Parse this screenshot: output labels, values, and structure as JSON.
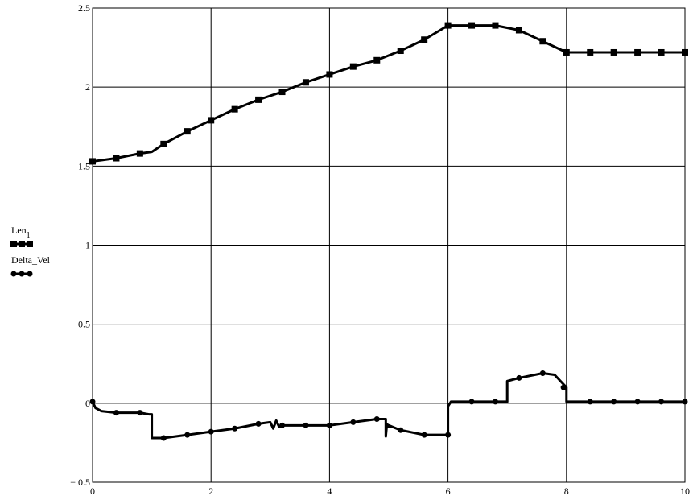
{
  "chart_data": {
    "type": "line",
    "title": "",
    "xlabel": "",
    "ylabel": "",
    "xlim": [
      0,
      10
    ],
    "ylim": [
      -0.5,
      2.5
    ],
    "grid": true,
    "x_ticks": [
      "0",
      "2",
      "4",
      "6",
      "8",
      "10"
    ],
    "y_ticks": [
      "− 0.5",
      "0",
      "0.5",
      "1",
      "1.5",
      "2",
      "2.5"
    ],
    "legend": {
      "placement": "left-middle"
    },
    "series": [
      {
        "name": "Len₁",
        "legend_main": "Len",
        "legend_sub": "1",
        "marker": "square",
        "color": "#000000",
        "x": [
          0,
          0.4,
          0.8,
          1.0,
          1.2,
          1.6,
          2.0,
          2.4,
          2.8,
          3.2,
          3.6,
          4.0,
          4.4,
          4.8,
          5.2,
          5.6,
          6.0,
          6.4,
          6.8,
          7.2,
          7.6,
          8.0,
          8.4,
          8.8,
          9.2,
          9.6,
          10.0
        ],
        "y": [
          1.53,
          1.55,
          1.58,
          1.59,
          1.64,
          1.72,
          1.79,
          1.86,
          1.92,
          1.97,
          2.03,
          2.08,
          2.13,
          2.17,
          2.23,
          2.3,
          2.39,
          2.39,
          2.39,
          2.36,
          2.29,
          2.22,
          2.22,
          2.22,
          2.22,
          2.22,
          2.22
        ],
        "marker_x": [
          0,
          0.4,
          0.8,
          1.2,
          1.6,
          2.0,
          2.4,
          2.8,
          3.2,
          3.6,
          4.0,
          4.4,
          4.8,
          5.2,
          5.6,
          6.0,
          6.4,
          6.8,
          7.2,
          7.6,
          8.0,
          8.4,
          8.8,
          9.2,
          9.6,
          10.0
        ]
      },
      {
        "name": "Delta_Vel",
        "legend_main": "Delta_Vel",
        "legend_sub": "",
        "marker": "circle",
        "color": "#000000",
        "x": [
          0,
          0.05,
          0.15,
          0.4,
          0.8,
          0.95,
          1.0,
          1.0,
          1.2,
          1.6,
          2.0,
          2.4,
          2.8,
          3.0,
          3.05,
          3.1,
          3.15,
          3.2,
          3.6,
          4.0,
          4.4,
          4.8,
          4.95,
          4.95,
          4.97,
          5.0,
          5.0,
          5.2,
          5.6,
          6.0,
          6.0,
          6.05,
          6.4,
          6.8,
          7.0,
          7.0,
          7.2,
          7.6,
          7.8,
          7.9,
          8.0,
          8.0,
          8.4,
          8.8,
          9.2,
          9.6,
          10.0
        ],
        "y": [
          0.01,
          -0.03,
          -0.05,
          -0.06,
          -0.06,
          -0.07,
          -0.07,
          -0.22,
          -0.22,
          -0.2,
          -0.18,
          -0.16,
          -0.13,
          -0.12,
          -0.16,
          -0.11,
          -0.15,
          -0.14,
          -0.14,
          -0.14,
          -0.12,
          -0.1,
          -0.1,
          -0.21,
          -0.13,
          -0.15,
          -0.14,
          -0.17,
          -0.2,
          -0.2,
          -0.02,
          0.01,
          0.01,
          0.01,
          0.01,
          0.14,
          0.16,
          0.19,
          0.18,
          0.14,
          0.1,
          0.01,
          0.01,
          0.01,
          0.01,
          0.01,
          0.01
        ],
        "marker_points": [
          [
            0,
            0.01
          ],
          [
            0.4,
            -0.06
          ],
          [
            0.8,
            -0.06
          ],
          [
            1.2,
            -0.22
          ],
          [
            1.6,
            -0.2
          ],
          [
            2.0,
            -0.18
          ],
          [
            2.4,
            -0.16
          ],
          [
            2.8,
            -0.13
          ],
          [
            3.2,
            -0.14
          ],
          [
            3.6,
            -0.14
          ],
          [
            4.0,
            -0.14
          ],
          [
            4.4,
            -0.12
          ],
          [
            4.8,
            -0.1
          ],
          [
            5.2,
            -0.17
          ],
          [
            5.6,
            -0.2
          ],
          [
            6.0,
            -0.2
          ],
          [
            6.4,
            0.01
          ],
          [
            6.8,
            0.01
          ],
          [
            7.2,
            0.16
          ],
          [
            7.6,
            0.19
          ],
          [
            7.95,
            0.1
          ],
          [
            8.4,
            0.01
          ],
          [
            8.8,
            0.01
          ],
          [
            9.2,
            0.01
          ],
          [
            9.6,
            0.01
          ],
          [
            10.0,
            0.01
          ]
        ]
      }
    ]
  }
}
